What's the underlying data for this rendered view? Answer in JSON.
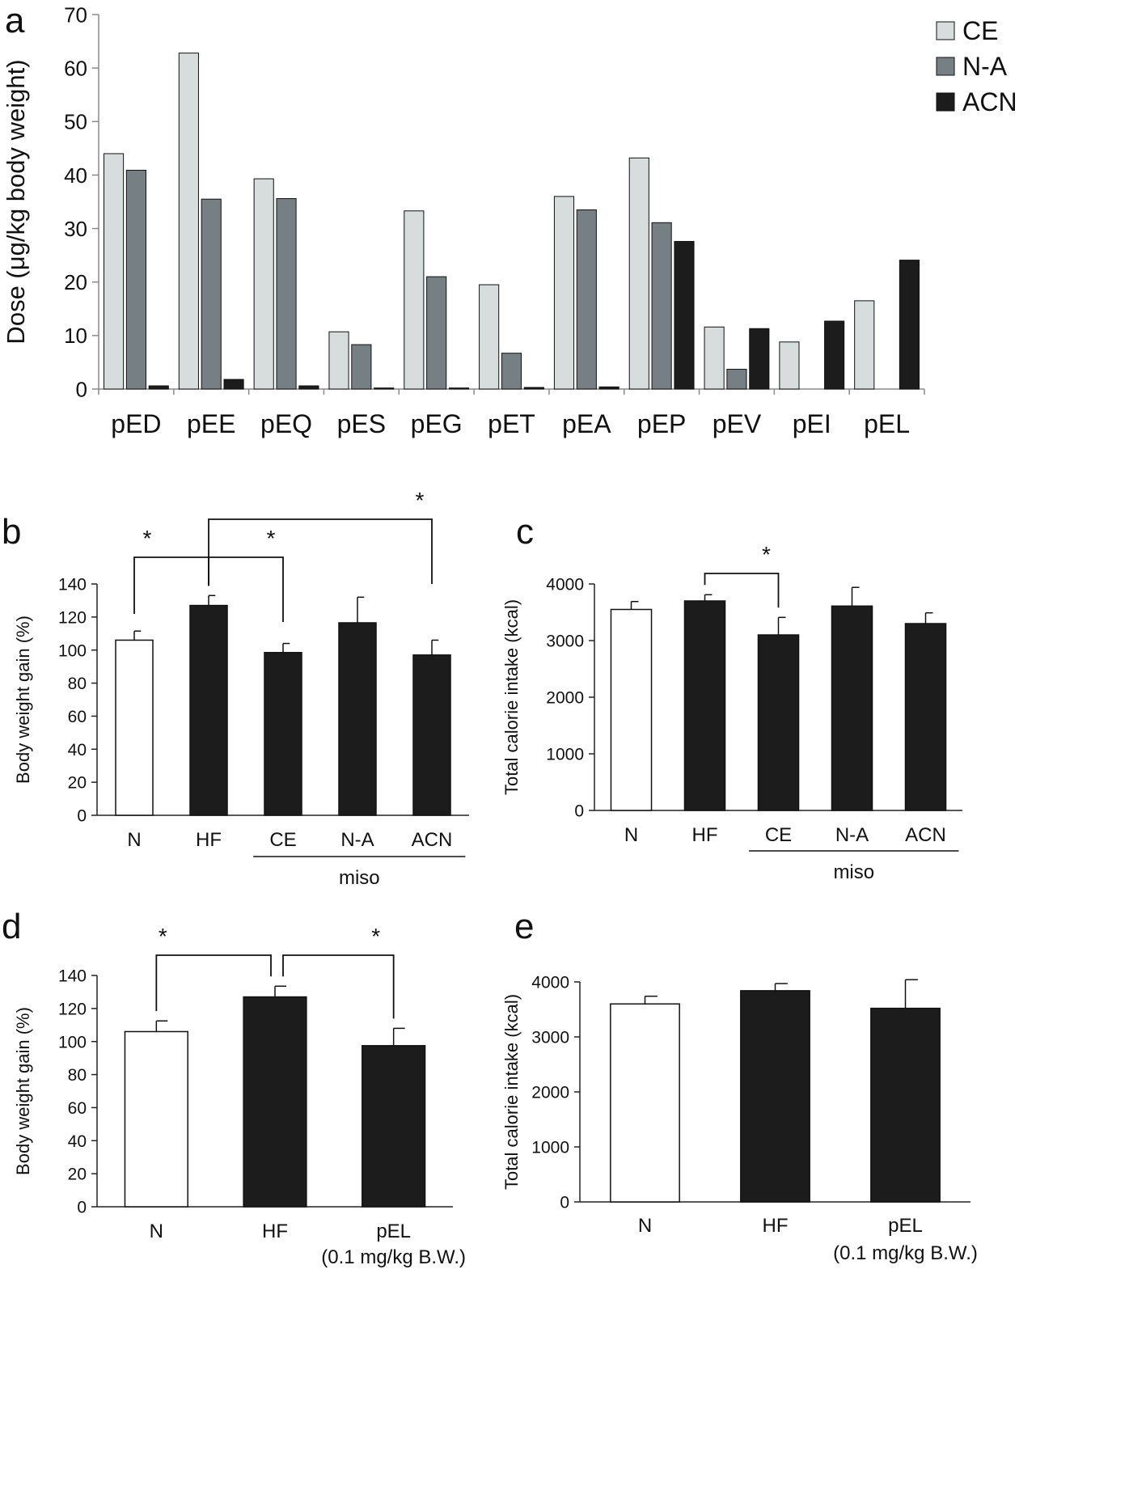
{
  "chart_data": [
    {
      "id": "a",
      "panel_label": "a",
      "type": "bar",
      "ylabel": "Dose (μg/kg body weight)",
      "ylim": [
        0,
        70
      ],
      "yticks": [
        0,
        10,
        20,
        30,
        40,
        50,
        60,
        70
      ],
      "categories": [
        "pED",
        "pEE",
        "pEQ",
        "pES",
        "pEG",
        "pET",
        "pEA",
        "pEP",
        "pEV",
        "pEI",
        "pEL"
      ],
      "legend_position": "top-right",
      "series": [
        {
          "name": "CE",
          "color": "#d7dcdc",
          "values": [
            44,
            62.8,
            39.3,
            10.7,
            33.3,
            19.5,
            36,
            43.2,
            11.6,
            8.8,
            16.5
          ]
        },
        {
          "name": "N-A",
          "color": "#757f84",
          "values": [
            40.9,
            35.5,
            35.6,
            8.3,
            21,
            6.7,
            33.5,
            31.1,
            3.7,
            0,
            0
          ]
        },
        {
          "name": "ACN",
          "color": "#1c1c1c",
          "values": [
            0.6,
            1.8,
            0.6,
            0.2,
            0.2,
            0.3,
            0.4,
            27.6,
            11.3,
            12.7,
            24.1
          ]
        }
      ]
    },
    {
      "id": "b",
      "panel_label": "b",
      "type": "bar",
      "ylabel": "Body weight gain (%)",
      "ylim": [
        0,
        140
      ],
      "yticks": [
        0,
        20,
        40,
        60,
        80,
        100,
        120,
        140
      ],
      "categories": [
        "N",
        "HF",
        "CE",
        "N-A",
        "ACN"
      ],
      "values": [
        106,
        127,
        98.5,
        116.5,
        97
      ],
      "errors": [
        5.5,
        6,
        5.5,
        15.5,
        9
      ],
      "fills": [
        "#ffffff",
        "#1c1c1c",
        "#1c1c1c",
        "#1c1c1c",
        "#1c1c1c"
      ],
      "group_label": "miso",
      "group_range": [
        2,
        4
      ],
      "significance": [
        {
          "from": 0,
          "to": 1,
          "label": "*"
        },
        {
          "from": 1,
          "to": 2,
          "label": "*"
        },
        {
          "from": 1,
          "to": 4,
          "label": "*"
        }
      ]
    },
    {
      "id": "c",
      "panel_label": "c",
      "type": "bar",
      "ylabel": "Total calorie intake (kcal)",
      "ylim": [
        0,
        4000
      ],
      "yticks": [
        0,
        1000,
        2000,
        3000,
        4000
      ],
      "categories": [
        "N",
        "HF",
        "CE",
        "N-A",
        "ACN"
      ],
      "values": [
        3550,
        3700,
        3100,
        3610,
        3300
      ],
      "errors": [
        140,
        110,
        310,
        330,
        190
      ],
      "fills": [
        "#ffffff",
        "#1c1c1c",
        "#1c1c1c",
        "#1c1c1c",
        "#1c1c1c"
      ],
      "group_label": "miso",
      "group_range": [
        2,
        4
      ],
      "significance": [
        {
          "from": 1,
          "to": 2,
          "label": "*"
        }
      ]
    },
    {
      "id": "d",
      "panel_label": "d",
      "type": "bar",
      "ylabel": "Body weight gain (%)",
      "ylim": [
        0,
        140
      ],
      "yticks": [
        0,
        20,
        40,
        60,
        80,
        100,
        120,
        140
      ],
      "categories": [
        "N",
        "HF",
        "pEL"
      ],
      "sublabels": [
        "",
        "",
        "(0.1 mg/kg B.W.)"
      ],
      "values": [
        106,
        127,
        97.5
      ],
      "errors": [
        6.5,
        6.5,
        10.5
      ],
      "fills": [
        "#ffffff",
        "#1c1c1c",
        "#1c1c1c"
      ],
      "significance": [
        {
          "from": 0,
          "to": 1,
          "label": "*"
        },
        {
          "from": 1,
          "to": 2,
          "label": "*"
        }
      ]
    },
    {
      "id": "e",
      "panel_label": "e",
      "type": "bar",
      "ylabel": "Total calorie intake (kcal)",
      "ylim": [
        0,
        4000
      ],
      "yticks": [
        0,
        1000,
        2000,
        3000,
        4000
      ],
      "categories": [
        "N",
        "HF",
        "pEL"
      ],
      "sublabels": [
        "",
        "",
        "(0.1 mg/kg B.W.)"
      ],
      "values": [
        3600,
        3840,
        3520
      ],
      "errors": [
        140,
        130,
        520
      ],
      "fills": [
        "#ffffff",
        "#1c1c1c",
        "#1c1c1c"
      ],
      "significance": []
    }
  ]
}
